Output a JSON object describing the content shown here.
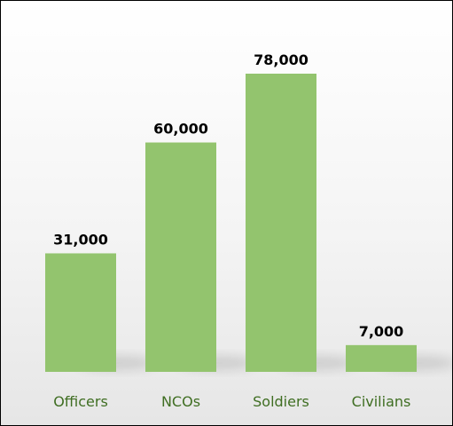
{
  "chart_data": {
    "type": "bar",
    "categories": [
      "Officers",
      "NCOs",
      "Soldiers",
      "Civilians"
    ],
    "values": [
      31000,
      60000,
      78000,
      7000
    ],
    "value_labels": [
      "31,000",
      "60,000",
      "78,000",
      "7,000"
    ],
    "color": "#93c46e"
  }
}
